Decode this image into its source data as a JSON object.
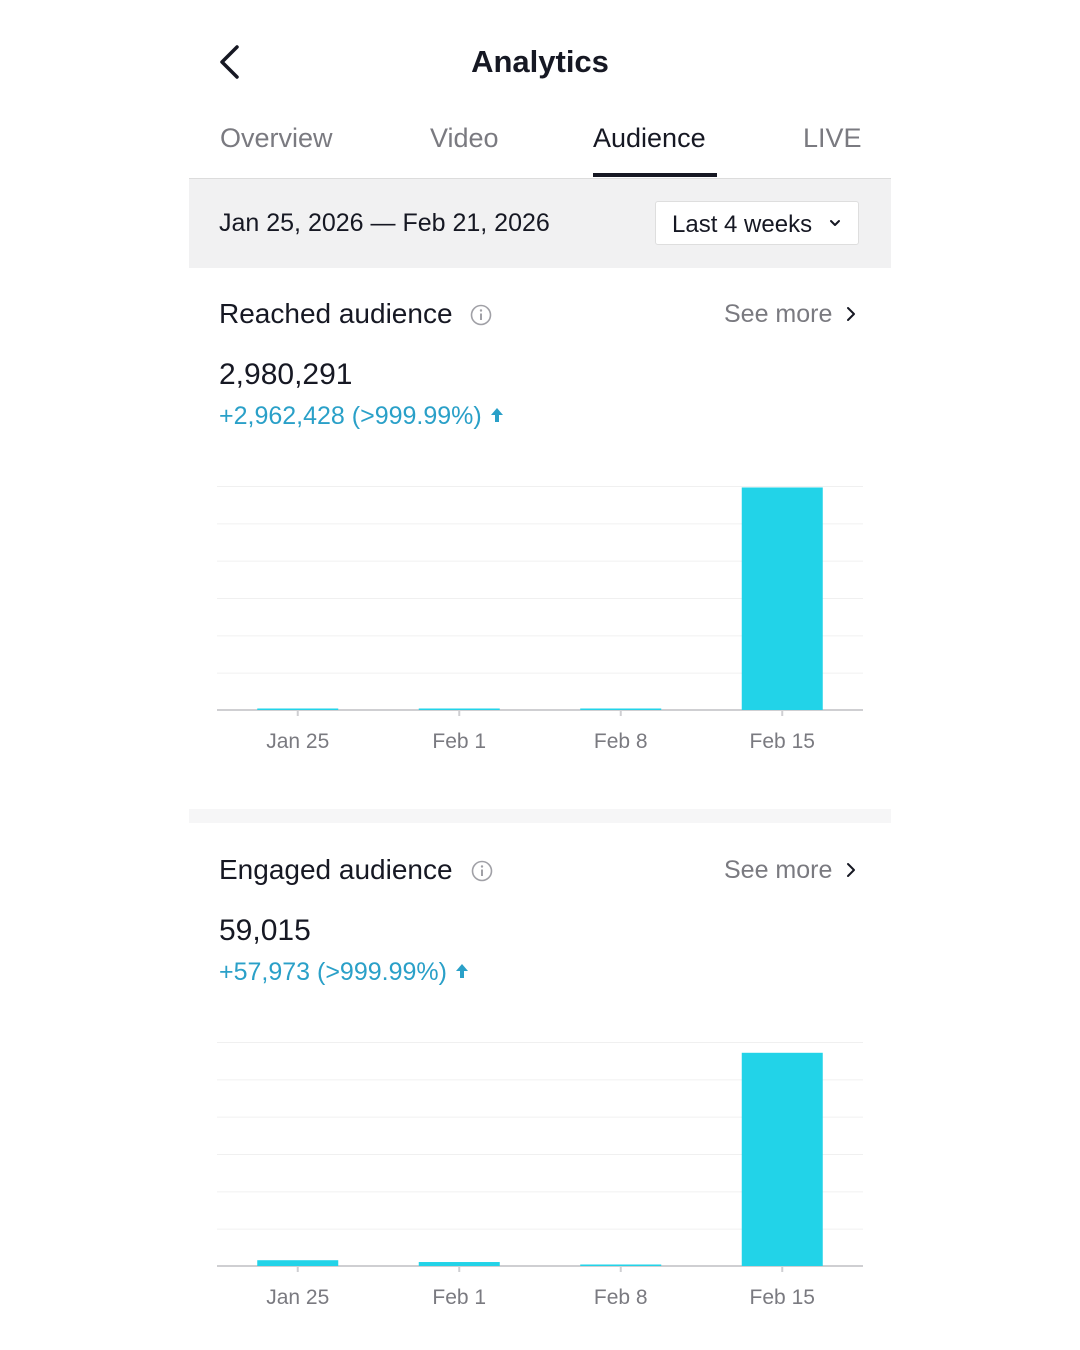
{
  "header": {
    "title": "Analytics"
  },
  "tabs": [
    {
      "label": "Overview",
      "active": false
    },
    {
      "label": "Video",
      "active": false
    },
    {
      "label": "Audience",
      "active": true
    },
    {
      "label": "LIVE",
      "active": false
    }
  ],
  "date_filter": {
    "range": "Jan 25, 2026 — Feb 21, 2026",
    "period": "Last 4 weeks"
  },
  "reached": {
    "title": "Reached audience",
    "see_more": "See more",
    "total": "2,980,291",
    "change": "+2,962,428 (>999.99%)"
  },
  "engaged": {
    "title": "Engaged audience",
    "see_more": "See more",
    "total": "59,015",
    "change": "+57,973 (>999.99%)"
  },
  "colors": {
    "bar": "#22d3e8",
    "delta": "#2aa0c8",
    "active_tab": "#161823",
    "inactive_tab": "#7a7a80"
  },
  "chart_data": [
    {
      "type": "bar",
      "categories": [
        "Jan 25",
        "Feb 1",
        "Feb 8",
        "Feb 15"
      ],
      "values": [
        2500,
        1800,
        900,
        2980291
      ],
      "ylim": [
        0,
        3000000
      ]
    },
    {
      "type": "bar",
      "categories": [
        "Jan 25",
        "Feb 1",
        "Feb 8",
        "Feb 15"
      ],
      "values": [
        1600,
        1100,
        400,
        59015
      ],
      "ylim": [
        0,
        62000
      ]
    }
  ]
}
